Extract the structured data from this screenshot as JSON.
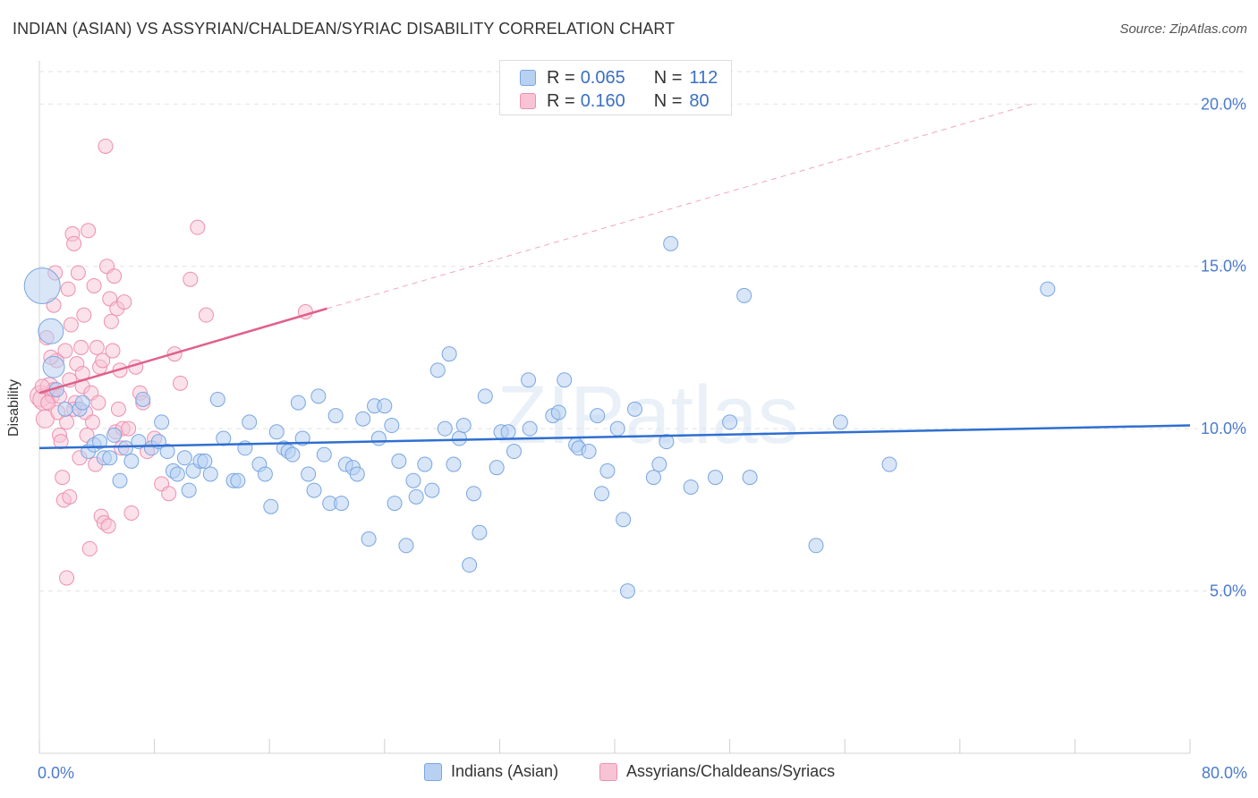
{
  "title": "INDIAN (ASIAN) VS ASSYRIAN/CHALDEAN/SYRIAC DISABILITY CORRELATION CHART",
  "source": "Source: ZipAtlas.com",
  "watermark": "ZIPatlas",
  "legend_top": {
    "rows": [
      {
        "r_label": "R =",
        "r_value": "0.065",
        "n_label": "N =",
        "n_value": "112",
        "color": "#b8d1f3"
      },
      {
        "r_label": "R =",
        "r_value": "0.160",
        "n_label": "N =",
        "n_value": "80",
        "color": "#f8c4d5"
      }
    ]
  },
  "chart_data": {
    "type": "scatter",
    "title": "INDIAN (ASIAN) VS ASSYRIAN/CHALDEAN/SYRIAC DISABILITY CORRELATION CHART",
    "xlabel": "",
    "ylabel": "Disability",
    "xlim": [
      0,
      80
    ],
    "ylim": [
      0,
      21
    ],
    "x_tick_labels": [
      {
        "value": 0,
        "label": "0.0%"
      },
      {
        "value": 80,
        "label": "80.0%"
      }
    ],
    "y_tick_labels": [
      {
        "value": 5,
        "label": "5.0%"
      },
      {
        "value": 10,
        "label": "10.0%"
      },
      {
        "value": 15,
        "label": "15.0%"
      },
      {
        "value": 20,
        "label": "20.0%"
      }
    ],
    "x_minor_ticks": [
      0,
      8,
      16,
      24,
      32,
      40,
      48,
      56,
      64,
      72,
      80
    ],
    "grid": true,
    "legend_position": "bottom",
    "series": [
      {
        "name": "Indians (Asian)",
        "color": "#7aa6e0",
        "fill": "#b8d1f3",
        "trend": {
          "x0": 0,
          "y0": 9.4,
          "x1": 80,
          "y1": 10.1
        },
        "points": [
          [
            0.2,
            14.4,
            18
          ],
          [
            0.8,
            13.0,
            12
          ],
          [
            1.0,
            11.9,
            10
          ],
          [
            1.2,
            11.2,
            6
          ],
          [
            1.8,
            10.6,
            6
          ],
          [
            2.8,
            10.6,
            6
          ],
          [
            3.0,
            10.8,
            6
          ],
          [
            3.4,
            9.3,
            6
          ],
          [
            3.8,
            9.5,
            6
          ],
          [
            4.2,
            9.6,
            6
          ],
          [
            4.5,
            9.1,
            6
          ],
          [
            4.9,
            9.1,
            6
          ],
          [
            5.2,
            9.8,
            6
          ],
          [
            5.6,
            8.4,
            6
          ],
          [
            6.0,
            9.4,
            6
          ],
          [
            6.4,
            9.0,
            6
          ],
          [
            6.9,
            9.6,
            6
          ],
          [
            7.2,
            10.9,
            6
          ],
          [
            7.8,
            9.4,
            6
          ],
          [
            8.3,
            9.6,
            6
          ],
          [
            8.5,
            10.2,
            6
          ],
          [
            8.9,
            9.3,
            6
          ],
          [
            9.3,
            8.7,
            6
          ],
          [
            9.6,
            8.6,
            6
          ],
          [
            10.1,
            9.1,
            6
          ],
          [
            10.4,
            8.1,
            6
          ],
          [
            10.7,
            8.7,
            6
          ],
          [
            11.2,
            9.0,
            6
          ],
          [
            11.5,
            9.0,
            6
          ],
          [
            11.9,
            8.6,
            6
          ],
          [
            12.4,
            10.9,
            6
          ],
          [
            12.8,
            9.7,
            6
          ],
          [
            13.5,
            8.4,
            6
          ],
          [
            13.8,
            8.4,
            6
          ],
          [
            14.3,
            9.4,
            6
          ],
          [
            14.6,
            10.2,
            6
          ],
          [
            15.3,
            8.9,
            6
          ],
          [
            15.7,
            8.6,
            6
          ],
          [
            16.1,
            7.6,
            6
          ],
          [
            16.5,
            9.9,
            6
          ],
          [
            17.0,
            9.4,
            6
          ],
          [
            17.3,
            9.3,
            6
          ],
          [
            17.6,
            9.2,
            6
          ],
          [
            18.0,
            10.8,
            6
          ],
          [
            18.3,
            9.7,
            6
          ],
          [
            18.7,
            8.6,
            6
          ],
          [
            19.1,
            8.1,
            6
          ],
          [
            19.4,
            11.0,
            6
          ],
          [
            19.8,
            9.2,
            6
          ],
          [
            20.2,
            7.7,
            6
          ],
          [
            20.6,
            10.4,
            6
          ],
          [
            21.0,
            7.7,
            6
          ],
          [
            21.3,
            8.9,
            6
          ],
          [
            21.8,
            8.8,
            6
          ],
          [
            22.1,
            8.6,
            6
          ],
          [
            22.5,
            10.3,
            6
          ],
          [
            22.9,
            6.6,
            6
          ],
          [
            23.3,
            10.7,
            6
          ],
          [
            23.6,
            9.7,
            6
          ],
          [
            24.0,
            10.7,
            6
          ],
          [
            24.5,
            10.1,
            6
          ],
          [
            24.7,
            7.7,
            6
          ],
          [
            25.0,
            9.0,
            6
          ],
          [
            25.5,
            6.4,
            6
          ],
          [
            26.0,
            8.4,
            6
          ],
          [
            26.2,
            7.9,
            6
          ],
          [
            26.8,
            8.9,
            6
          ],
          [
            27.3,
            8.1,
            6
          ],
          [
            27.7,
            11.8,
            6
          ],
          [
            28.2,
            10.0,
            6
          ],
          [
            28.5,
            12.3,
            6
          ],
          [
            28.8,
            8.9,
            6
          ],
          [
            29.2,
            9.7,
            6
          ],
          [
            29.5,
            10.1,
            6
          ],
          [
            29.9,
            5.8,
            6
          ],
          [
            30.2,
            8.0,
            6
          ],
          [
            30.6,
            6.8,
            6
          ],
          [
            31.0,
            11.0,
            6
          ],
          [
            31.8,
            8.8,
            6
          ],
          [
            32.1,
            9.9,
            6
          ],
          [
            32.6,
            9.9,
            6
          ],
          [
            33.0,
            9.3,
            6
          ],
          [
            34.0,
            11.5,
            6
          ],
          [
            34.1,
            10.0,
            6
          ],
          [
            35.7,
            10.4,
            6
          ],
          [
            36.1,
            10.5,
            6
          ],
          [
            36.5,
            11.5,
            6
          ],
          [
            37.3,
            9.5,
            6
          ],
          [
            37.5,
            9.4,
            6
          ],
          [
            38.2,
            9.3,
            6
          ],
          [
            38.8,
            10.4,
            6
          ],
          [
            39.1,
            8.0,
            6
          ],
          [
            39.5,
            8.7,
            6
          ],
          [
            40.2,
            10.0,
            6
          ],
          [
            40.6,
            7.2,
            6
          ],
          [
            40.9,
            5.0,
            6
          ],
          [
            41.4,
            10.6,
            6
          ],
          [
            42.7,
            8.5,
            6
          ],
          [
            43.1,
            8.9,
            6
          ],
          [
            43.6,
            9.6,
            6
          ],
          [
            43.9,
            15.7,
            6
          ],
          [
            45.3,
            8.2,
            6
          ],
          [
            47.0,
            8.5,
            6
          ],
          [
            48.0,
            10.2,
            6
          ],
          [
            49.0,
            14.1,
            6
          ],
          [
            49.4,
            8.5,
            6
          ],
          [
            54.0,
            6.4,
            6
          ],
          [
            55.7,
            10.2,
            6
          ],
          [
            59.1,
            8.9,
            6
          ],
          [
            70.1,
            14.3,
            6
          ]
        ]
      },
      {
        "name": "Assyrians/Chaldeans/Syriacs",
        "color": "#ee8fae",
        "fill": "#f8c4d5",
        "trend": {
          "x0": 0,
          "y0": 11.1,
          "x1": 20,
          "y1": 13.7
        },
        "trend_extension": {
          "x0": 20,
          "y0": 13.7,
          "x1": 69,
          "y1": 20.0
        },
        "points": [
          [
            0.1,
            11.0,
            10
          ],
          [
            0.3,
            10.9,
            10
          ],
          [
            0.4,
            10.3,
            8
          ],
          [
            0.5,
            12.8,
            6
          ],
          [
            0.7,
            11.3,
            8
          ],
          [
            0.9,
            11.0,
            6
          ],
          [
            1.0,
            13.8,
            6
          ],
          [
            1.1,
            14.8,
            6
          ],
          [
            1.2,
            12.1,
            6
          ],
          [
            1.3,
            10.5,
            6
          ],
          [
            1.4,
            9.8,
            6
          ],
          [
            1.5,
            9.6,
            6
          ],
          [
            1.6,
            8.5,
            6
          ],
          [
            1.7,
            7.8,
            6
          ],
          [
            1.8,
            12.4,
            6
          ],
          [
            1.9,
            5.4,
            6
          ],
          [
            2.0,
            14.3,
            6
          ],
          [
            2.1,
            11.5,
            6
          ],
          [
            2.2,
            13.2,
            6
          ],
          [
            2.3,
            16.0,
            6
          ],
          [
            2.4,
            15.7,
            6
          ],
          [
            2.5,
            10.8,
            6
          ],
          [
            2.6,
            12.0,
            6
          ],
          [
            2.7,
            14.8,
            6
          ],
          [
            2.8,
            9.1,
            6
          ],
          [
            2.9,
            12.5,
            6
          ],
          [
            3.0,
            11.3,
            6
          ],
          [
            3.1,
            13.5,
            6
          ],
          [
            3.2,
            10.5,
            6
          ],
          [
            3.3,
            9.8,
            6
          ],
          [
            3.4,
            16.1,
            6
          ],
          [
            3.5,
            6.3,
            6
          ],
          [
            3.6,
            11.1,
            6
          ],
          [
            3.7,
            10.2,
            6
          ],
          [
            3.8,
            14.4,
            6
          ],
          [
            3.9,
            8.9,
            6
          ],
          [
            4.0,
            12.5,
            6
          ],
          [
            4.1,
            10.8,
            6
          ],
          [
            4.2,
            11.9,
            6
          ],
          [
            4.3,
            7.3,
            6
          ],
          [
            4.4,
            12.1,
            6
          ],
          [
            4.5,
            7.1,
            6
          ],
          [
            4.6,
            18.7,
            6
          ],
          [
            4.7,
            15.0,
            6
          ],
          [
            4.8,
            7.0,
            6
          ],
          [
            4.9,
            14.0,
            6
          ],
          [
            5.0,
            13.3,
            6
          ],
          [
            5.1,
            12.4,
            6
          ],
          [
            5.2,
            14.7,
            6
          ],
          [
            5.3,
            9.9,
            6
          ],
          [
            5.4,
            13.7,
            6
          ],
          [
            5.5,
            10.6,
            6
          ],
          [
            5.6,
            11.8,
            6
          ],
          [
            5.7,
            9.4,
            6
          ],
          [
            5.8,
            10.0,
            6
          ],
          [
            5.9,
            13.9,
            6
          ],
          [
            6.2,
            10.0,
            6
          ],
          [
            6.4,
            7.4,
            6
          ],
          [
            6.7,
            11.9,
            6
          ],
          [
            7.0,
            11.1,
            6
          ],
          [
            7.2,
            10.8,
            6
          ],
          [
            7.5,
            9.3,
            6
          ],
          [
            8.0,
            9.7,
            6
          ],
          [
            8.5,
            8.3,
            6
          ],
          [
            9.0,
            8.0,
            6
          ],
          [
            9.4,
            12.3,
            6
          ],
          [
            9.8,
            11.4,
            6
          ],
          [
            10.5,
            14.6,
            6
          ],
          [
            11.0,
            16.2,
            6
          ],
          [
            11.6,
            13.5,
            6
          ],
          [
            18.5,
            13.6,
            6
          ],
          [
            0.6,
            10.8,
            6
          ],
          [
            1.0,
            11.2,
            6
          ],
          [
            1.4,
            11.0,
            6
          ],
          [
            1.9,
            10.2,
            6
          ],
          [
            2.4,
            10.6,
            6
          ],
          [
            0.8,
            12.2,
            6
          ],
          [
            3.0,
            11.7,
            6
          ],
          [
            2.1,
            7.9,
            6
          ],
          [
            0.2,
            11.3,
            6
          ]
        ]
      }
    ]
  }
}
